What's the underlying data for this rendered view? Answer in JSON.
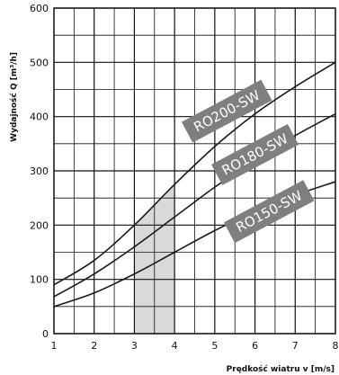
{
  "chart_data": {
    "type": "line",
    "xlabel": "Prędkość wiatru v [m/s]",
    "ylabel": "Wydajność Q [m³/h]",
    "xlim": [
      1,
      8
    ],
    "ylim": [
      0,
      600
    ],
    "x_ticks": [
      1,
      2,
      3,
      4,
      5,
      6,
      7,
      8
    ],
    "y_ticks": [
      0,
      100,
      200,
      300,
      400,
      500,
      600
    ],
    "grid": true,
    "highlight_x_range": [
      3,
      4
    ],
    "colors": {
      "line": "#1a1a1a",
      "label_box": "#7f7f7f",
      "highlight": "#d9d9d9"
    },
    "series": [
      {
        "name": "RO200-SW",
        "x": [
          1,
          2,
          3,
          4,
          5,
          6,
          7,
          8
        ],
        "values": [
          90,
          135,
          200,
          275,
          345,
          405,
          455,
          500
        ]
      },
      {
        "name": "RO180-SW",
        "x": [
          1,
          2,
          3,
          4,
          5,
          6,
          7,
          8
        ],
        "values": [
          68,
          110,
          160,
          215,
          270,
          320,
          365,
          405
        ]
      },
      {
        "name": "RO150-SW",
        "x": [
          1,
          2,
          3,
          4,
          5,
          6,
          7,
          8
        ],
        "values": [
          50,
          75,
          110,
          150,
          190,
          225,
          255,
          280
        ]
      }
    ]
  }
}
